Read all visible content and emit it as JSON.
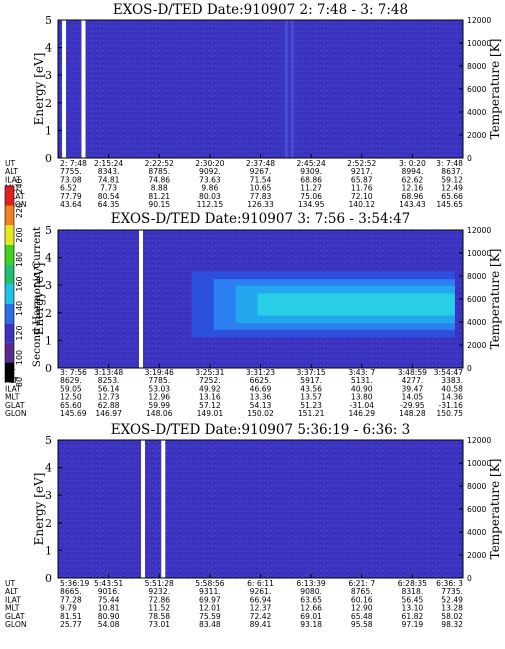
{
  "chart_data": [
    {
      "type": "heatmap",
      "title": "EXOS-D/TED   Date:910907  2: 7:48 - 3: 7:48",
      "ylabel": "Energy [eV]",
      "ylabel_right": "Temperature [K]",
      "ylim": [
        0,
        5
      ],
      "ylim_right": [
        0,
        12000
      ],
      "yticks": [
        "0",
        "1",
        "2",
        "3",
        "4",
        "5"
      ],
      "yticks_right": [
        "0",
        "2000",
        "4000",
        "6000",
        "8000",
        "10000",
        "12000"
      ],
      "background_color": "#3a34c0",
      "band": null,
      "gaps": [
        0.01,
        0.058
      ],
      "faint_streaks": [
        0.56,
        0.575
      ],
      "table_labels": [
        "UT",
        "ALT",
        "ILAT",
        "MLT",
        "GLAT",
        "GLON"
      ],
      "columns": [
        [
          "2: 7:48",
          "7755.",
          "73.08",
          "6.52",
          "77.79",
          "43.64"
        ],
        [
          "2:15:24",
          "8343.",
          "74.81",
          "7.73",
          "80.54",
          "64.35"
        ],
        [
          "2:22:52",
          "8785.",
          "74.86",
          "8.88",
          "81.21",
          "90.15"
        ],
        [
          "2:30:20",
          "9092.",
          "73.63",
          "9.86",
          "80.03",
          "112.15"
        ],
        [
          "2:37:48",
          "9267.",
          "71.54",
          "10.65",
          "77.83",
          "126.33"
        ],
        [
          "2:45:24",
          "9309.",
          "68.86",
          "11.27",
          "75.06",
          "134.95"
        ],
        [
          "2:52:52",
          "9217.",
          "65.87",
          "11.76",
          "72.10",
          "140.12"
        ],
        [
          "3: 0:20",
          "8994.",
          "62.62",
          "12.16",
          "68.96",
          "143.43"
        ],
        [
          "3: 7:48",
          "8637.",
          "59.12",
          "12.49",
          "65.66",
          "145.65"
        ]
      ]
    },
    {
      "type": "heatmap",
      "title": "EXOS-D/TED   Date:910907  3: 7:56 - 3:54:47",
      "ylabel": "Energy [eV]",
      "ylabel_right": "Temperature [K]",
      "ylim": [
        0,
        5
      ],
      "ylim_right": [
        0,
        12000
      ],
      "yticks": [
        "0",
        "1",
        "2",
        "3",
        "4",
        "5"
      ],
      "yticks_right": [
        "0",
        "2000",
        "4000",
        "6000",
        "8000",
        "10000",
        "12000"
      ],
      "background_color": "#3a34c0",
      "band": {
        "x_start": 0.33,
        "x_end": 0.98,
        "energy_center": 2.3,
        "energy_halfwidth": 0.8
      },
      "gaps": [
        0.2
      ],
      "faint_streaks": [],
      "table_labels": [
        "UT",
        "ALT",
        "ILAT",
        "MLT",
        "GLAT",
        "GLON"
      ],
      "columns": [
        [
          "3: 7:56",
          "8629.",
          "59.05",
          "12.50",
          "65.60",
          "145.69"
        ],
        [
          "3:13:48",
          "8253.",
          "56.14",
          "12.73",
          "62.88",
          "146.97"
        ],
        [
          "3:19:46",
          "7785.",
          "53.03",
          "12.96",
          "59.99",
          "148.06"
        ],
        [
          "3:25:31",
          "7252.",
          "49.92",
          "13.16",
          "57.12",
          "149.01"
        ],
        [
          "3:31:23",
          "6625.",
          "46.69",
          "13.36",
          "54.13",
          "150.02"
        ],
        [
          "3:37:15",
          "5917.",
          "43.56",
          "13.57",
          "51.23",
          "151.21"
        ],
        [
          "3:43: 7",
          "5131.",
          "40.90",
          "13.80",
          "-31.04",
          "146.29"
        ],
        [
          "3:48:59",
          "4277.",
          "39.47",
          "14.05",
          "-29.95",
          "148.28"
        ],
        [
          "3:54:47",
          "3383.",
          "40.58",
          "14.36",
          "-31.16",
          "150.75"
        ]
      ]
    },
    {
      "type": "heatmap",
      "title": "EXOS-D/TED   Date:910907  5:36:19 - 6:36: 3",
      "ylabel": "Energy [eV]",
      "ylabel_right": "Temperature [K]",
      "ylim": [
        0,
        5
      ],
      "ylim_right": [
        0,
        12000
      ],
      "yticks": [
        "0",
        "1",
        "2",
        "3",
        "4",
        "5"
      ],
      "yticks_right": [
        "0",
        "2000",
        "4000",
        "6000",
        "8000",
        "10000",
        "12000"
      ],
      "background_color": "#3a34c0",
      "band": null,
      "gaps": [
        0.205,
        0.255
      ],
      "faint_streaks": [],
      "table_labels": [
        "UT",
        "ALT",
        "ILAT",
        "MLT",
        "GLAT",
        "GLON"
      ],
      "columns": [
        [
          "5:36:19",
          "8665.",
          "77.28",
          "9.79",
          "81.51",
          "25.77"
        ],
        [
          "5:43:51",
          "9016.",
          "75.44",
          "10.81",
          "80.90",
          "54.08"
        ],
        [
          "5:51:28",
          "9232.",
          "72.86",
          "11.52",
          "78.58",
          "73.01"
        ],
        [
          "5:58:56",
          "9311.",
          "69.97",
          "12.01",
          "75.59",
          "83.48"
        ],
        [
          "6: 6:11",
          "9261.",
          "66.94",
          "12.37",
          "72.42",
          "89.41"
        ],
        [
          "6:13:39",
          "9080.",
          "63.65",
          "12.66",
          "69.01",
          "93.18"
        ],
        [
          "6:21: 7",
          "8765.",
          "60.16",
          "12.90",
          "65.48",
          "95.58"
        ],
        [
          "6:28:35",
          "8318.",
          "56.45",
          "13.10",
          "61.82",
          "97.19"
        ],
        [
          "6:36: 3",
          "7735.",
          "52.49",
          "13.28",
          "58.02",
          "98.32"
        ]
      ]
    }
  ],
  "colorbar": {
    "label": "Second Harmonic Current",
    "ticks": [
      "80",
      "100",
      "120",
      "140",
      "160",
      "180",
      "200",
      "220",
      "240"
    ],
    "colors": [
      "#000000",
      "#5a2a8a",
      "#3c33c4",
      "#2f6ee8",
      "#20c4e8",
      "#20c070",
      "#40d020",
      "#e8e820",
      "#f08020",
      "#e02020"
    ]
  }
}
